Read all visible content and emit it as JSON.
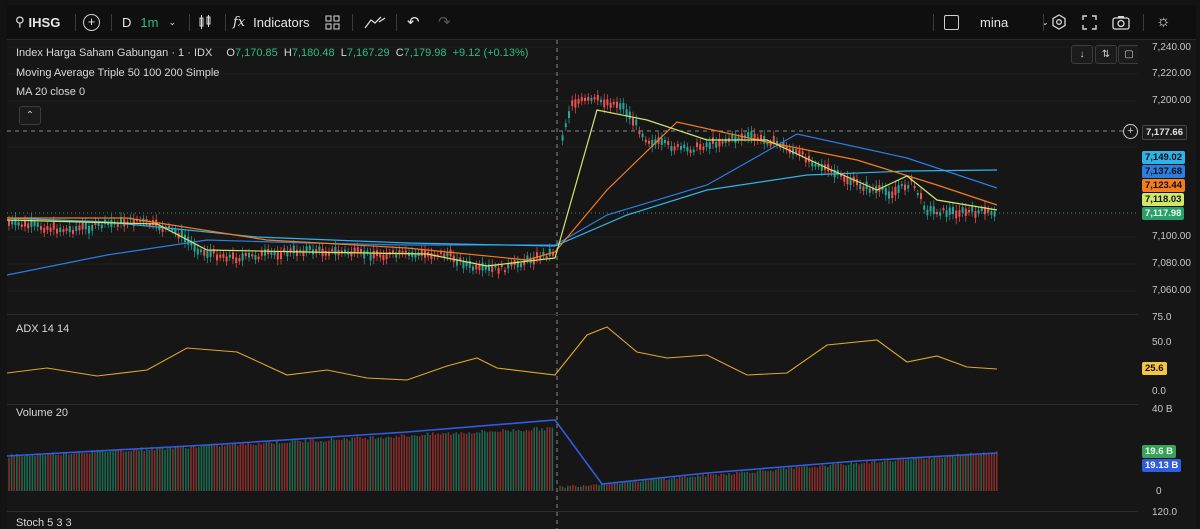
{
  "toolbar": {
    "symbol": "IHSG",
    "interval": "D",
    "interval_alt": "1m",
    "indicators_label": "Indicators",
    "user_label": "mina"
  },
  "legend": {
    "title": "Index Harga Saham Gabungan · 1 · IDX",
    "o_label": "O",
    "o_value": "7,170.85",
    "h_label": "H",
    "h_value": "7,180.48",
    "l_label": "L",
    "l_value": "7,167.29",
    "c_label": "C",
    "c_value": "7,179.98",
    "change": "+9.12 (+0.13%)",
    "ma_triple": "Moving Average Triple 50 100 200 Simple",
    "ma20": "MA 20 close 0"
  },
  "price_axis": {
    "ticks": [
      "7,240.00",
      "7,220.00",
      "7,200.00",
      "7,100.00",
      "7,080.00",
      "7,060.00"
    ],
    "crosshair_value": "7,177.66",
    "tags": [
      {
        "value": "7,149.02",
        "color": "#2fb3e6"
      },
      {
        "value": "7,137.68",
        "color": "#2a7de1"
      },
      {
        "value": "7,123.44",
        "color": "#f57c1f"
      },
      {
        "value": "7,118.03",
        "color": "#cfe86a"
      },
      {
        "value": "7,117.98",
        "color": "#2b9f6b"
      }
    ]
  },
  "adx": {
    "title": "ADX 14 14",
    "ticks": [
      "75.0",
      "50.0",
      "0.0"
    ],
    "value_tag": "25.6",
    "color": "#e0a72a"
  },
  "volume": {
    "title": "Volume 20",
    "ticks": [
      "40 B",
      "0"
    ],
    "tags": [
      {
        "value": "19.6 B",
        "color": "#3aa15a"
      },
      {
        "value": "19.13 B",
        "color": "#2f5ce0"
      }
    ]
  },
  "stoch": {
    "title": "Stoch 5 3 3",
    "ticks": [
      "120.0"
    ]
  },
  "colors": {
    "up": "#26a69a",
    "down": "#ef5350",
    "ma50": "#cfe86a",
    "ma100": "#f57c1f",
    "ma200": "#2a7de1",
    "ma20": "#2fb3e6"
  }
}
